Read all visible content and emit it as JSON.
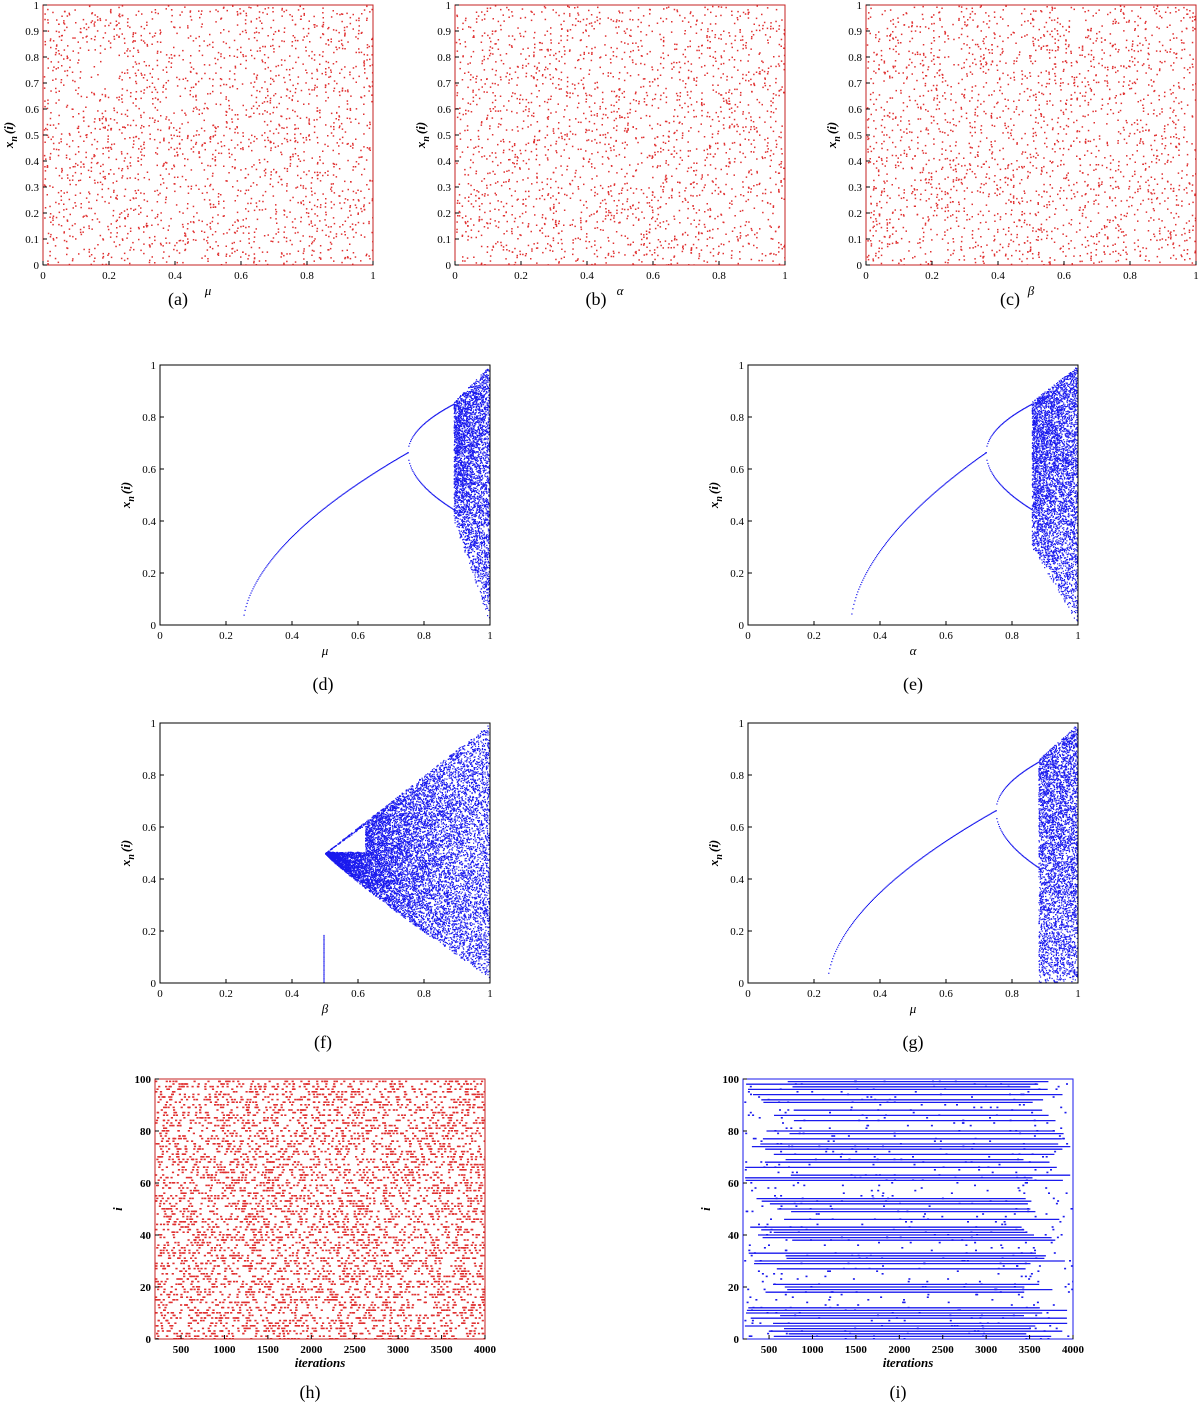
{
  "figure": {
    "panels": [
      {
        "caption": "(a)",
        "chart_data": {
          "type": "scatter",
          "xlabel": "μ",
          "ylabel": "x",
          "ylabel_sub": "n",
          "ylabel_tail": "(i)",
          "xlim": [
            0,
            1
          ],
          "ylim": [
            0,
            1
          ],
          "x_ticks": [
            0,
            0.2,
            0.4,
            0.6,
            0.8,
            1
          ],
          "x_tick_labels": [
            "0",
            "0.2",
            "0.4",
            "0.6",
            "0.8",
            "1"
          ],
          "y_ticks": [
            0,
            0.1,
            0.2,
            0.3,
            0.4,
            0.5,
            0.6,
            0.7,
            0.8,
            0.9,
            1
          ],
          "y_tick_labels": [
            "0",
            "0.1",
            "0.2",
            "0.3",
            "0.4",
            "0.5",
            "0.6",
            "0.7",
            "0.8",
            "0.9",
            "1"
          ],
          "series": [
            {
              "generator": "uniform-noise",
              "color": "#e03030",
              "x_range": [
                0,
                1
              ],
              "y_range": [
                0,
                1
              ]
            }
          ]
        }
      },
      {
        "caption": "(b)",
        "chart_data": {
          "type": "scatter",
          "xlabel": "α",
          "ylabel": "x",
          "ylabel_sub": "n",
          "ylabel_tail": "(i)",
          "xlim": [
            0,
            1
          ],
          "ylim": [
            0,
            1
          ],
          "x_ticks": [
            0,
            0.2,
            0.4,
            0.6,
            0.8,
            1
          ],
          "x_tick_labels": [
            "0",
            "0.2",
            "0.4",
            "0.6",
            "0.8",
            "1"
          ],
          "y_ticks": [
            0,
            0.1,
            0.2,
            0.3,
            0.4,
            0.5,
            0.6,
            0.7,
            0.8,
            0.9,
            1
          ],
          "y_tick_labels": [
            "0",
            "0.1",
            "0.2",
            "0.3",
            "0.4",
            "0.5",
            "0.6",
            "0.7",
            "0.8",
            "0.9",
            "1"
          ],
          "series": [
            {
              "generator": "uniform-noise",
              "color": "#e03030",
              "x_range": [
                0,
                1
              ],
              "y_range": [
                0,
                1
              ]
            }
          ]
        }
      },
      {
        "caption": "(c)",
        "chart_data": {
          "type": "scatter",
          "xlabel": "β",
          "ylabel": "x",
          "ylabel_sub": "n",
          "ylabel_tail": "(i)",
          "xlim": [
            0,
            1
          ],
          "ylim": [
            0,
            1
          ],
          "x_ticks": [
            0,
            0.2,
            0.4,
            0.6,
            0.8,
            1
          ],
          "x_tick_labels": [
            "0",
            "0.2",
            "0.4",
            "0.6",
            "0.8",
            "1"
          ],
          "y_ticks": [
            0,
            0.1,
            0.2,
            0.3,
            0.4,
            0.5,
            0.6,
            0.7,
            0.8,
            0.9,
            1
          ],
          "y_tick_labels": [
            "0",
            "0.1",
            "0.2",
            "0.3",
            "0.4",
            "0.5",
            "0.6",
            "0.7",
            "0.8",
            "0.9",
            "1"
          ],
          "series": [
            {
              "generator": "uniform-noise",
              "color": "#e03030",
              "x_range": [
                0,
                1
              ],
              "y_range": [
                0,
                1
              ]
            }
          ]
        }
      },
      {
        "caption": "(d)",
        "chart_data": {
          "type": "scatter",
          "xlabel": "μ",
          "ylabel": "x",
          "ylabel_sub": "n",
          "ylabel_tail": "(i)",
          "xlim": [
            0,
            1
          ],
          "ylim": [
            0,
            1
          ],
          "x_ticks": [
            0,
            0.2,
            0.4,
            0.6,
            0.8,
            1
          ],
          "x_tick_labels": [
            "0",
            "0.2",
            "0.4",
            "0.6",
            "0.8",
            "1"
          ],
          "y_ticks": [
            0,
            0.2,
            0.4,
            0.6,
            0.8,
            1
          ],
          "y_tick_labels": [
            "0",
            "0.2",
            "0.4",
            "0.6",
            "0.8",
            "1"
          ],
          "series": [
            {
              "generator": "bifurcation",
              "color": "#1a1aee",
              "onset": 0.25,
              "period2": 0.75,
              "chaos": 0.89,
              "chaos_low": 0.4
            }
          ]
        }
      },
      {
        "caption": "(e)",
        "chart_data": {
          "type": "scatter",
          "xlabel": "α",
          "ylabel": "x",
          "ylabel_sub": "n",
          "ylabel_tail": "(i)",
          "xlim": [
            0,
            1
          ],
          "ylim": [
            0,
            1
          ],
          "x_ticks": [
            0,
            0.2,
            0.4,
            0.6,
            0.8,
            1
          ],
          "x_tick_labels": [
            "0",
            "0.2",
            "0.4",
            "0.6",
            "0.8",
            "1"
          ],
          "y_ticks": [
            0,
            0.2,
            0.4,
            0.6,
            0.8,
            1
          ],
          "y_tick_labels": [
            "0",
            "0.2",
            "0.4",
            "0.6",
            "0.8",
            "1"
          ],
          "series": [
            {
              "generator": "bifurcation",
              "color": "#1a1aee",
              "onset": 0.31,
              "period2": 0.72,
              "chaos": 0.86,
              "chaos_low": 0.3
            }
          ]
        }
      },
      {
        "caption": "(f)",
        "chart_data": {
          "type": "scatter",
          "xlabel": "β",
          "ylabel": "x",
          "ylabel_sub": "n",
          "ylabel_tail": "(i)",
          "xlim": [
            0,
            1
          ],
          "ylim": [
            0,
            1
          ],
          "x_ticks": [
            0,
            0.2,
            0.4,
            0.6,
            0.8,
            1
          ],
          "x_tick_labels": [
            "0",
            "0.2",
            "0.4",
            "0.6",
            "0.8",
            "1"
          ],
          "y_ticks": [
            0,
            0.2,
            0.4,
            0.6,
            0.8,
            1
          ],
          "y_tick_labels": [
            "0",
            "0.2",
            "0.4",
            "0.6",
            "0.8",
            "1"
          ],
          "series": [
            {
              "generator": "wedge",
              "color": "#1a1aee",
              "apex_x": 0.5,
              "apex_y": 0.5,
              "spike_top": 0.19
            }
          ]
        }
      },
      {
        "caption": "(g)",
        "chart_data": {
          "type": "scatter",
          "xlabel": "μ",
          "ylabel": "x",
          "ylabel_sub": "n",
          "ylabel_tail": "(i)",
          "xlim": [
            0,
            1
          ],
          "ylim": [
            0,
            1
          ],
          "x_ticks": [
            0,
            0.2,
            0.4,
            0.6,
            0.8,
            1
          ],
          "x_tick_labels": [
            "0",
            "0.2",
            "0.4",
            "0.6",
            "0.8",
            "1"
          ],
          "y_ticks": [
            0,
            0.2,
            0.4,
            0.6,
            0.8,
            1
          ],
          "y_tick_labels": [
            "0",
            "0.2",
            "0.4",
            "0.6",
            "0.8",
            "1"
          ],
          "series": [
            {
              "generator": "bifurcation",
              "color": "#1a1aee",
              "onset": 0.24,
              "period2": 0.75,
              "chaos": 0.88,
              "chaos_low": 0.0
            }
          ]
        }
      },
      {
        "caption": "(h)",
        "chart_data": {
          "type": "scatter",
          "xlabel": "iterations",
          "ylabel": "i",
          "xlim": [
            200,
            4000
          ],
          "ylim": [
            0,
            100
          ],
          "x_ticks": [
            500,
            1000,
            1500,
            2000,
            2500,
            3000,
            3500,
            4000
          ],
          "x_tick_labels": [
            "500",
            "1000",
            "1500",
            "2000",
            "2500",
            "3000",
            "3500",
            "4000"
          ],
          "y_ticks": [
            0,
            20,
            40,
            60,
            80,
            100
          ],
          "y_tick_labels": [
            "0",
            "20",
            "40",
            "60",
            "80",
            "100"
          ],
          "series": [
            {
              "generator": "spatiotemporal-chaos",
              "color": "#e03030",
              "rows": 100
            }
          ]
        }
      },
      {
        "caption": "(i)",
        "chart_data": {
          "type": "scatter",
          "xlabel": "iterations",
          "ylabel": "i",
          "xlim": [
            200,
            4000
          ],
          "ylim": [
            0,
            100
          ],
          "x_ticks": [
            500,
            1000,
            1500,
            2000,
            2500,
            3000,
            3500,
            4000
          ],
          "x_tick_labels": [
            "500",
            "1000",
            "1500",
            "2000",
            "2500",
            "3000",
            "3500",
            "4000"
          ],
          "y_ticks": [
            0,
            20,
            40,
            60,
            80,
            100
          ],
          "y_tick_labels": [
            "0",
            "20",
            "40",
            "60",
            "80",
            "100"
          ],
          "series": [
            {
              "generator": "spatiotemporal-stripes",
              "color": "#1a1aee",
              "rows": 100
            }
          ]
        }
      }
    ]
  }
}
